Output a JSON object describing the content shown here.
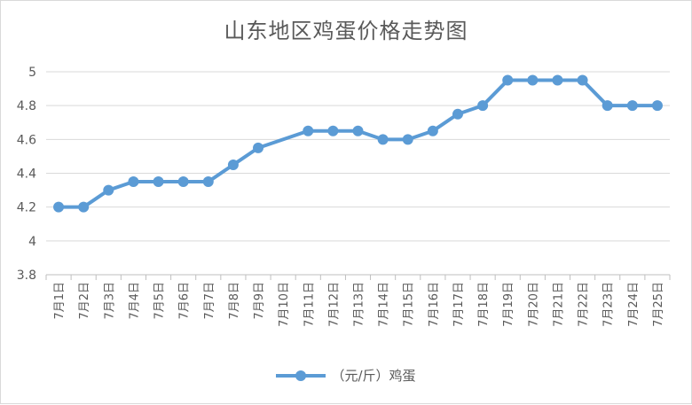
{
  "chart_data": {
    "type": "line",
    "title": "山东地区鸡蛋价格走势图",
    "categories": [
      "7月1日",
      "7月2日",
      "7月3日",
      "7月4日",
      "7月5日",
      "7月6日",
      "7月7日",
      "7月8日",
      "7月9日",
      "7月10日",
      "7月11日",
      "7月12日",
      "7月13日",
      "7月14日",
      "7月15日",
      "7月16日",
      "7月17日",
      "7月18日",
      "7月19日",
      "7月20日",
      "7月21日",
      "7月22日",
      "7月23日",
      "7月24日",
      "7月25日"
    ],
    "series": [
      {
        "name": "（元/斤）鸡蛋",
        "values": [
          4.2,
          4.2,
          4.3,
          4.35,
          4.35,
          4.35,
          4.35,
          4.45,
          4.55,
          null,
          4.65,
          4.65,
          4.65,
          4.6,
          4.6,
          4.65,
          4.75,
          4.8,
          4.95,
          4.95,
          4.95,
          4.95,
          4.8,
          4.8,
          4.8
        ],
        "color": "#5b9bd5"
      }
    ],
    "yticks": [
      "3.8",
      "4",
      "4.2",
      "4.4",
      "4.6",
      "4.8",
      "5"
    ],
    "ylim": [
      3.8,
      5
    ],
    "grid": true,
    "legend": "bottom"
  }
}
